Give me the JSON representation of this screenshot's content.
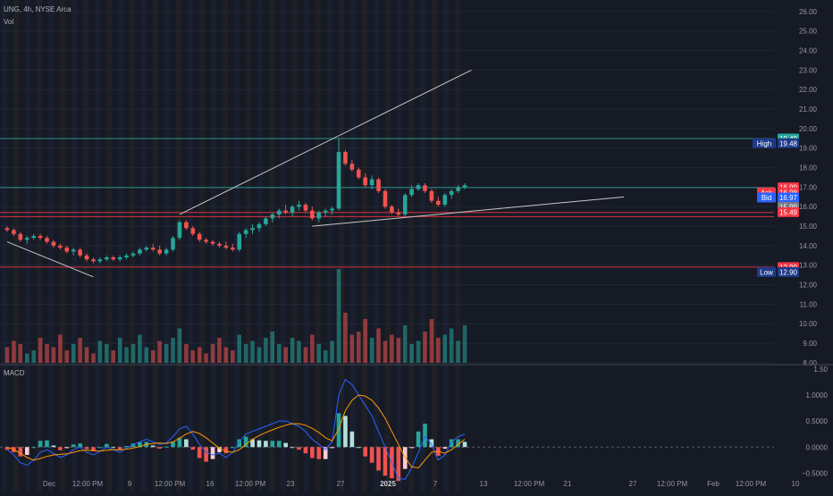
{
  "header": {
    "symbol_line": "UNG, 4h, NYSE Arca",
    "volume_label": "Vol",
    "macd_label": "MACD"
  },
  "colors": {
    "background": "#161a25",
    "up": "#26a69a",
    "down": "#ef5350",
    "macd_line": "#2962ff",
    "signal_line": "#ff9800",
    "resistance_line": "#26a69a",
    "support_line": "#f23645",
    "trendline": "#c8c8c8"
  },
  "chart_data": {
    "type": "candlestick",
    "symbol": "UNG",
    "interval": "4h",
    "exchange": "NYSE Arca",
    "price_axis": {
      "ticks": [
        8.0,
        9.0,
        10.0,
        11.0,
        12.0,
        13.0,
        14.0,
        15.0,
        16.0,
        17.0,
        18.0,
        19.0,
        20.0,
        21.0,
        22.0,
        23.0,
        24.0,
        25.0,
        26.0
      ],
      "tick_labels": [
        "8.00",
        "9.00",
        "10.00",
        "11.00",
        "12.00",
        "13.00",
        "14.00",
        "15.00",
        "16.00",
        "17.00",
        "18.00",
        "19.00",
        "20.00",
        "21.00",
        "22.00",
        "23.00",
        "24.00",
        "25.00",
        "26.00"
      ],
      "range": [
        7.95,
        26.5
      ]
    },
    "time_axis": {
      "labels": [
        "Dec",
        "12:00 PM",
        "9",
        "12:00 PM",
        "16",
        "12:00 PM",
        "23",
        "27",
        "2025",
        "7",
        "13",
        "12:00 PM",
        "21",
        "27",
        "12:00 PM",
        "Feb",
        "12:00 PM",
        "10"
      ],
      "bold_label": "2025"
    },
    "price_tags": [
      {
        "label": "",
        "value": "19.49",
        "price": 19.49,
        "color": "#26a69a"
      },
      {
        "label": "High",
        "value": "19.48",
        "price": 19.25,
        "color": "#1e3a8a"
      },
      {
        "label": "",
        "value": "16.99",
        "price": 16.99,
        "color": "#f23645"
      },
      {
        "label": "Ask",
        "value": "16.98",
        "price": 16.73,
        "color": "#f23645"
      },
      {
        "label": "Bid",
        "value": "16.97",
        "price": 16.47,
        "color": "#2962ff"
      },
      {
        "label": "",
        "value": "15.99",
        "price": 15.99,
        "color": "#787b86"
      },
      {
        "label": "",
        "value": "15.49",
        "price": 15.72,
        "color": "#f23645"
      },
      {
        "label": "",
        "value": "12.90",
        "price": 12.9,
        "color": "#f23645"
      },
      {
        "label": "Low",
        "value": "12.90",
        "price": 12.65,
        "color": "#1e3a8a"
      }
    ],
    "horizontal_levels": [
      {
        "price": 19.49,
        "kind": "resistance"
      },
      {
        "price": 16.98,
        "kind": "resistance"
      },
      {
        "price": 15.7,
        "kind": "support"
      },
      {
        "price": 15.49,
        "kind": "support"
      },
      {
        "price": 12.9,
        "kind": "support"
      }
    ],
    "trendlines": [
      {
        "from": [
          0,
          14.2
        ],
        "to": [
          13,
          12.4
        ]
      },
      {
        "from": [
          26,
          15.6
        ],
        "to": [
          70,
          23.0
        ]
      },
      {
        "from": [
          46,
          15.0
        ],
        "to": [
          93,
          16.5
        ]
      }
    ],
    "candles": [
      [
        14.9,
        15.0,
        14.7,
        14.8
      ],
      [
        14.8,
        14.9,
        14.5,
        14.6
      ],
      [
        14.6,
        14.7,
        14.2,
        14.3
      ],
      [
        14.3,
        14.5,
        14.1,
        14.4
      ],
      [
        14.4,
        14.6,
        14.3,
        14.5
      ],
      [
        14.5,
        14.6,
        14.3,
        14.4
      ],
      [
        14.4,
        14.5,
        14.1,
        14.2
      ],
      [
        14.2,
        14.3,
        13.9,
        14.0
      ],
      [
        14.0,
        14.1,
        13.8,
        13.9
      ],
      [
        13.9,
        14.0,
        13.6,
        13.7
      ],
      [
        13.7,
        13.9,
        13.5,
        13.8
      ],
      [
        13.8,
        13.9,
        13.4,
        13.5
      ],
      [
        13.5,
        13.6,
        13.2,
        13.3
      ],
      [
        13.3,
        13.4,
        13.1,
        13.2
      ],
      [
        13.2,
        13.4,
        13.1,
        13.3
      ],
      [
        13.3,
        13.5,
        13.2,
        13.4
      ],
      [
        13.4,
        13.5,
        13.2,
        13.3
      ],
      [
        13.3,
        13.5,
        13.2,
        13.4
      ],
      [
        13.4,
        13.6,
        13.3,
        13.5
      ],
      [
        13.5,
        13.7,
        13.4,
        13.6
      ],
      [
        13.6,
        13.9,
        13.5,
        13.8
      ],
      [
        13.8,
        14.0,
        13.7,
        13.9
      ],
      [
        13.9,
        14.1,
        13.7,
        13.8
      ],
      [
        13.8,
        14.0,
        13.5,
        13.6
      ],
      [
        13.6,
        13.9,
        13.5,
        13.8
      ],
      [
        13.8,
        14.5,
        13.7,
        14.4
      ],
      [
        14.4,
        15.3,
        14.3,
        15.2
      ],
      [
        15.2,
        15.3,
        14.8,
        14.9
      ],
      [
        14.9,
        15.0,
        14.5,
        14.6
      ],
      [
        14.6,
        14.7,
        14.2,
        14.3
      ],
      [
        14.3,
        14.4,
        14.1,
        14.2
      ],
      [
        14.2,
        14.3,
        14.0,
        14.1
      ],
      [
        14.1,
        14.2,
        13.9,
        14.0
      ],
      [
        14.0,
        14.2,
        13.8,
        13.9
      ],
      [
        13.9,
        14.1,
        13.7,
        13.8
      ],
      [
        13.8,
        14.7,
        13.7,
        14.6
      ],
      [
        14.6,
        14.9,
        14.4,
        14.8
      ],
      [
        14.8,
        15.1,
        14.6,
        14.9
      ],
      [
        14.9,
        15.2,
        14.7,
        15.1
      ],
      [
        15.1,
        15.5,
        15.0,
        15.4
      ],
      [
        15.4,
        15.7,
        15.2,
        15.6
      ],
      [
        15.6,
        15.9,
        15.4,
        15.8
      ],
      [
        15.8,
        16.1,
        15.6,
        15.7
      ],
      [
        15.7,
        16.1,
        15.5,
        16.0
      ],
      [
        16.0,
        16.3,
        15.8,
        16.1
      ],
      [
        16.1,
        16.2,
        15.7,
        15.8
      ],
      [
        15.8,
        16.0,
        15.3,
        15.4
      ],
      [
        15.4,
        15.8,
        15.2,
        15.7
      ],
      [
        15.7,
        15.9,
        15.5,
        15.8
      ],
      [
        15.8,
        16.0,
        15.6,
        15.9
      ],
      [
        15.9,
        19.5,
        15.8,
        18.8
      ],
      [
        18.8,
        18.9,
        18.1,
        18.2
      ],
      [
        18.2,
        18.4,
        17.8,
        17.9
      ],
      [
        17.9,
        18.0,
        17.4,
        17.5
      ],
      [
        17.5,
        17.7,
        17.0,
        17.1
      ],
      [
        17.1,
        17.6,
        16.9,
        17.4
      ],
      [
        17.4,
        17.5,
        16.7,
        16.8
      ],
      [
        16.8,
        16.9,
        15.9,
        16.0
      ],
      [
        16.0,
        16.1,
        15.6,
        15.7
      ],
      [
        15.7,
        15.9,
        15.5,
        15.6
      ],
      [
        15.6,
        16.7,
        15.5,
        16.6
      ],
      [
        16.6,
        17.1,
        16.5,
        16.9
      ],
      [
        16.9,
        17.2,
        16.8,
        17.1
      ],
      [
        17.1,
        17.2,
        16.7,
        16.8
      ],
      [
        16.8,
        16.9,
        16.2,
        16.3
      ],
      [
        16.3,
        16.5,
        16.0,
        16.1
      ],
      [
        16.1,
        16.7,
        16.0,
        16.6
      ],
      [
        16.6,
        16.9,
        16.4,
        16.8
      ],
      [
        16.8,
        17.1,
        16.7,
        17.0
      ],
      [
        17.0,
        17.2,
        16.9,
        17.1
      ]
    ],
    "volume": [
      5,
      7,
      6,
      3,
      4,
      8,
      6,
      5,
      9,
      4,
      6,
      8,
      5,
      3,
      7,
      6,
      4,
      8,
      5,
      6,
      9,
      5,
      4,
      7,
      6,
      8,
      11,
      6,
      4,
      5,
      3,
      6,
      8,
      5,
      4,
      9,
      6,
      7,
      5,
      8,
      10,
      6,
      5,
      8,
      7,
      5,
      9,
      6,
      4,
      7,
      30,
      16,
      9,
      10,
      14,
      8,
      11,
      7,
      9,
      8,
      12,
      6,
      7,
      10,
      14,
      8,
      9,
      11,
      7,
      12
    ],
    "macd": {
      "axis_ticks": [
        -0.5,
        0.0,
        0.5,
        1.0,
        1.5
      ],
      "axis_labels": [
        "−0.5000",
        "0.0000",
        "0.5000",
        "1.0000",
        "1.50"
      ],
      "range": [
        -0.82,
        1.55
      ],
      "macd_line": [
        -0.05,
        -0.15,
        -0.3,
        -0.35,
        -0.25,
        -0.1,
        -0.05,
        -0.12,
        -0.2,
        -0.15,
        -0.05,
        0.0,
        -0.1,
        -0.15,
        -0.08,
        0.0,
        -0.05,
        -0.1,
        -0.02,
        0.05,
        0.1,
        0.15,
        0.1,
        0.05,
        0.08,
        0.2,
        0.35,
        0.4,
        0.25,
        0.05,
        -0.1,
        -0.15,
        -0.12,
        -0.2,
        -0.1,
        0.1,
        0.25,
        0.3,
        0.35,
        0.4,
        0.45,
        0.5,
        0.5,
        0.45,
        0.4,
        0.3,
        0.15,
        0.05,
        -0.05,
        0.1,
        1.0,
        1.3,
        1.2,
        1.0,
        0.8,
        0.6,
        0.3,
        0.0,
        -0.3,
        -0.6,
        -0.62,
        -0.4,
        -0.1,
        0.2,
        0.05,
        -0.25,
        -0.15,
        0.1,
        0.2,
        0.25
      ],
      "signal_line": [
        0.0,
        -0.05,
        -0.12,
        -0.2,
        -0.25,
        -0.22,
        -0.18,
        -0.15,
        -0.14,
        -0.13,
        -0.1,
        -0.07,
        -0.06,
        -0.07,
        -0.08,
        -0.06,
        -0.05,
        -0.05,
        -0.04,
        -0.02,
        0.01,
        0.05,
        0.07,
        0.08,
        0.07,
        0.1,
        0.17,
        0.25,
        0.3,
        0.26,
        0.18,
        0.08,
        -0.02,
        -0.08,
        -0.1,
        -0.05,
        0.05,
        0.15,
        0.22,
        0.28,
        0.33,
        0.38,
        0.42,
        0.45,
        0.45,
        0.42,
        0.36,
        0.28,
        0.18,
        0.12,
        0.35,
        0.7,
        0.9,
        1.0,
        0.98,
        0.9,
        0.75,
        0.55,
        0.3,
        0.05,
        -0.2,
        -0.38,
        -0.4,
        -0.25,
        -0.1,
        -0.08,
        -0.12,
        -0.05,
        0.05,
        0.15
      ]
    }
  }
}
